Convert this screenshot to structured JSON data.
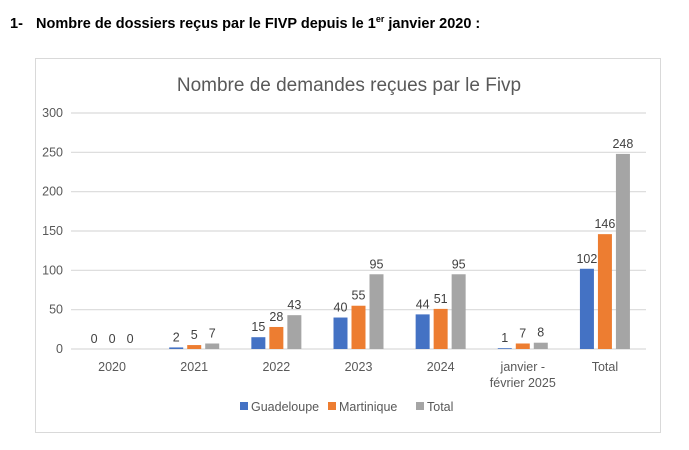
{
  "heading": {
    "number": "1-",
    "text_before": "Nombre de dossiers reçus par le FIVP depuis le 1",
    "superscript": "er",
    "text_after": " janvier 2020 :"
  },
  "chart_data": {
    "type": "bar",
    "title": "Nombre de demandes reçues par le Fivp",
    "xlabel": "",
    "ylabel": "",
    "ylim": [
      0,
      300
    ],
    "yticks": [
      0,
      50,
      100,
      150,
      200,
      250,
      300
    ],
    "grid": true,
    "legend_position": "bottom",
    "categories": [
      "2020",
      "2021",
      "2022",
      "2023",
      "2024",
      "janvier - février 2025",
      "Total"
    ],
    "category_lines": [
      [
        "2020"
      ],
      [
        "2021"
      ],
      [
        "2022"
      ],
      [
        "2023"
      ],
      [
        "2024"
      ],
      [
        "janvier -",
        "février 2025"
      ],
      [
        "Total"
      ]
    ],
    "series": [
      {
        "name": "Guadeloupe",
        "color": "#4472c4",
        "values": [
          0,
          2,
          15,
          40,
          44,
          1,
          102
        ]
      },
      {
        "name": "Martinique",
        "color": "#ed7d31",
        "values": [
          0,
          5,
          28,
          55,
          51,
          7,
          146
        ]
      },
      {
        "name": "Total",
        "color": "#a5a5a5",
        "values": [
          0,
          7,
          43,
          95,
          95,
          8,
          248
        ]
      }
    ]
  }
}
